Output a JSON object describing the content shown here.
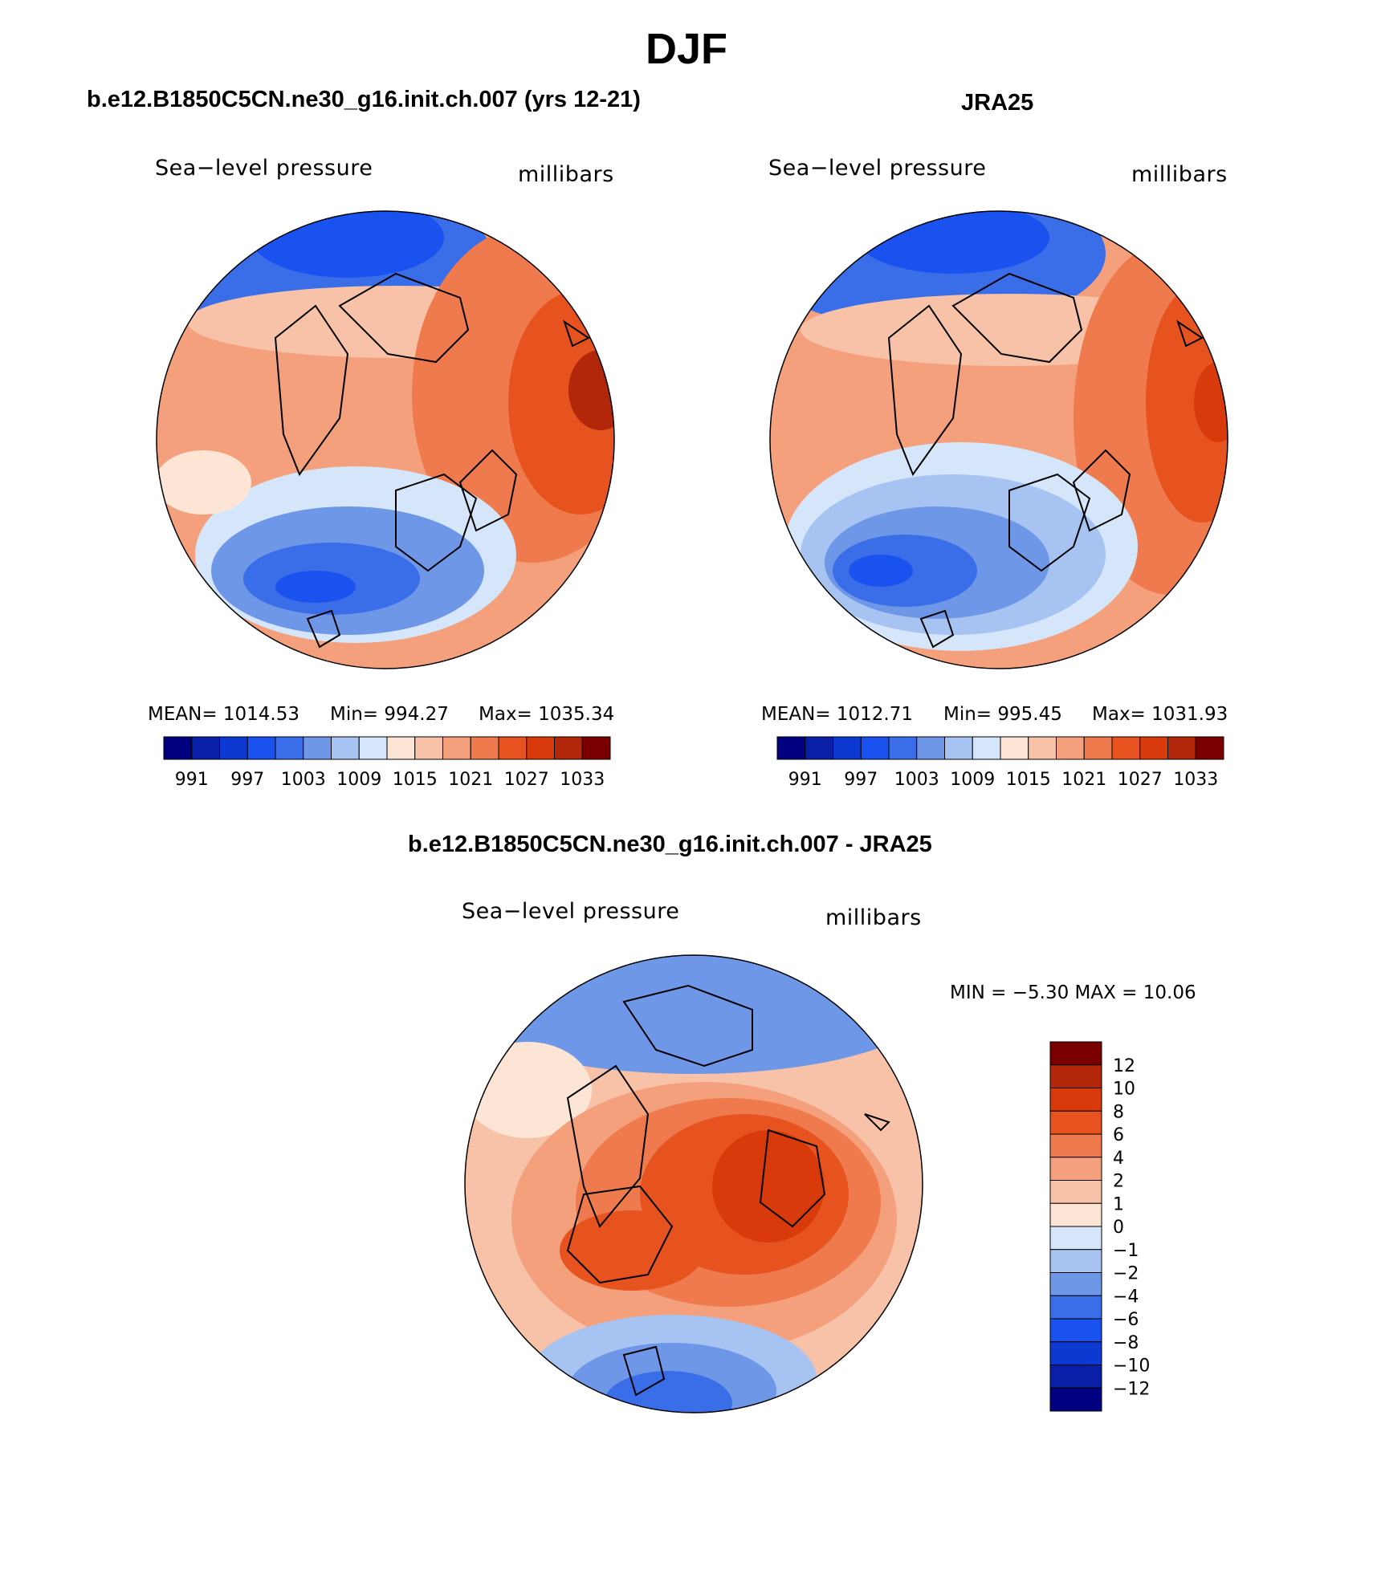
{
  "page": {
    "title": "DJF"
  },
  "panels": [
    {
      "id": "model",
      "title": "b.e12.B1850C5CN.ne30_g16.init.ch.007 (yrs 12-21)",
      "variable": "Sea−level pressure",
      "units": "millibars",
      "stats": {
        "mean": "MEAN= 1014.53",
        "min": "Min= 994.27",
        "max": "Max= 1035.34"
      }
    },
    {
      "id": "obs",
      "title": "JRA25",
      "variable": "Sea−level pressure",
      "units": "millibars",
      "stats": {
        "mean": "MEAN= 1012.71",
        "min": "Min= 995.45",
        "max": "Max= 1031.93"
      }
    },
    {
      "id": "diff",
      "title": "b.e12.B1850C5CN.ne30_g16.init.ch.007 - JRA25",
      "variable": "Sea−level pressure",
      "units": "millibars",
      "stats": {
        "minmax": "MIN =   −5.30 MAX =   10.06"
      }
    }
  ],
  "colorbars": {
    "absolute": {
      "colors": [
        "#000080",
        "#0a1fa8",
        "#0d38d1",
        "#1a52f0",
        "#3a6ee8",
        "#6f97e8",
        "#a6c3f2",
        "#d5e6fa",
        "#fde5d6",
        "#f8c2a8",
        "#f4a07c",
        "#ee7a4e",
        "#e6531f",
        "#d83a0c",
        "#b2260a",
        "#7a0000"
      ],
      "labels": [
        "991",
        "997",
        "1003",
        "1009",
        "1015",
        "1021",
        "1027",
        "1033"
      ]
    },
    "difference": {
      "colors": [
        "#7a0000",
        "#b2260a",
        "#d83a0c",
        "#e6531f",
        "#ee7a4e",
        "#f4a07c",
        "#f8c2a8",
        "#fde5d6",
        "#d5e6fa",
        "#a6c3f2",
        "#6f97e8",
        "#3a6ee8",
        "#1a52f0",
        "#0d38d1",
        "#0a1fa8",
        "#000080"
      ],
      "labels": [
        "12",
        "10",
        "8",
        "6",
        "4",
        "2",
        "1",
        "0",
        "−1",
        "−2",
        "−4",
        "−6",
        "−8",
        "−10",
        "−12"
      ]
    }
  }
}
